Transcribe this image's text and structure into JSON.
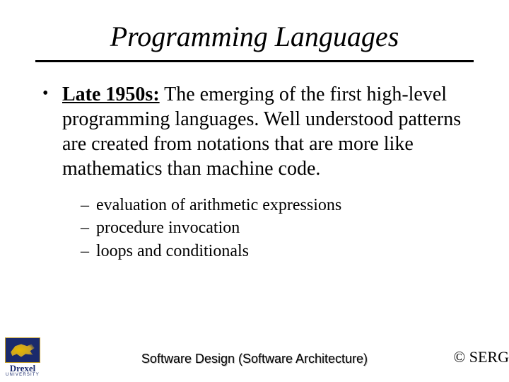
{
  "title": "Programming Languages",
  "bullet": {
    "lead": "Late 1950s:",
    "body": " The emerging of the first high-level programming languages.  Well understood patterns are created from notations that are more like mathematics than machine code."
  },
  "subitems": [
    "evaluation of arithmetic expressions",
    "procedure invocation",
    "loops and conditionals"
  ],
  "footer_center": "Software Design (Software Architecture)",
  "footer_right": "© SERG",
  "logo": {
    "name": "Drexel",
    "sub": "UNIVERSITY"
  },
  "colors": {
    "text": "#000000",
    "background": "#ffffff",
    "logo_bg": "#1a2a6c",
    "logo_accent": "#c9a227"
  },
  "fonts": {
    "title": {
      "family": "Times New Roman",
      "style": "italic",
      "size_pt": 40
    },
    "body": {
      "family": "Times New Roman",
      "size_pt": 28
    },
    "sub": {
      "family": "Times New Roman",
      "size_pt": 24
    },
    "footer_center": {
      "family": "Arial",
      "size_pt": 18
    },
    "footer_right": {
      "family": "Times New Roman",
      "size_pt": 22
    }
  }
}
